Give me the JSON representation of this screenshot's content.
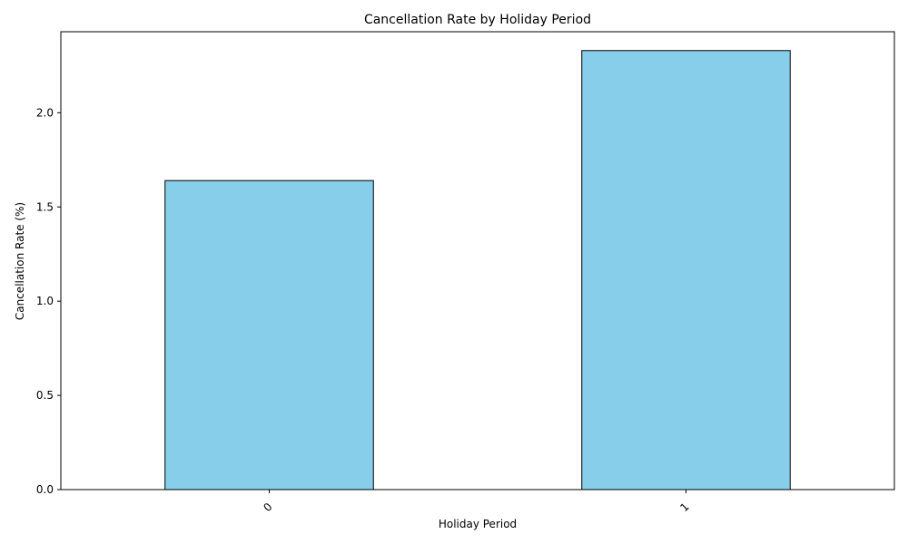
{
  "chart_data": {
    "type": "bar",
    "title": "Cancellation Rate by Holiday Period",
    "xlabel": "Holiday Period",
    "ylabel": "Cancellation Rate (%)",
    "categories": [
      "0",
      "1"
    ],
    "values": [
      1.64,
      2.33
    ],
    "ylim": [
      0,
      2.43
    ],
    "yticks": [
      0.0,
      0.5,
      1.0,
      1.5,
      2.0
    ],
    "ytick_labels": [
      "0.0",
      "0.5",
      "1.0",
      "1.5",
      "2.0"
    ],
    "xtick_rotation_deg": 45,
    "grid": false,
    "legend": "none",
    "colors": {
      "bar_fill": "#87ceeb",
      "bar_edge": "#000000",
      "axes": "#000000"
    }
  }
}
